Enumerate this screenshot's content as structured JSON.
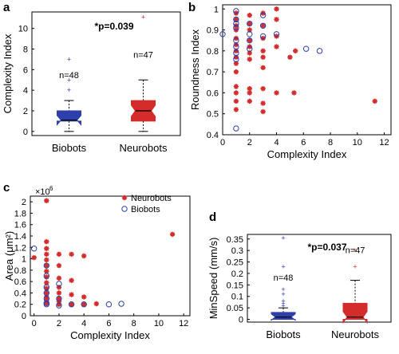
{
  "colors": {
    "neurobots": "#d42b2b",
    "biobots": "#2d3fa8",
    "median": "#000000"
  },
  "chart_data": [
    {
      "panel": "a",
      "type": "box",
      "ylabel": "Complexity Index",
      "categories": [
        "Biobots",
        "Neurobots"
      ],
      "yticks": [
        0,
        2,
        4,
        6,
        8,
        10
      ],
      "ylim": [
        -0.4,
        11.6
      ],
      "significance": "*p=0.039",
      "boxes": [
        {
          "name": "Biobots",
          "n_label": "n=48",
          "color": "biobots",
          "q1": 1.0,
          "median": 1.1,
          "q3": 2.0,
          "whisker_low": 0.0,
          "whisker_high": 3.0,
          "outliers": [
            4.0,
            5.0,
            7.0
          ]
        },
        {
          "name": "Neurobots",
          "n_label": "n=47",
          "color": "neurobots",
          "q1": 1.0,
          "median": 2.0,
          "q3": 3.0,
          "whisker_low": 0.0,
          "whisker_high": 5.0,
          "outliers": [
            11.1
          ]
        }
      ]
    },
    {
      "panel": "b",
      "type": "scatter",
      "xlabel": "Complexity Index",
      "ylabel": "Roundness Index",
      "xlim": [
        0,
        12.5
      ],
      "ylim": [
        0.4,
        1.02
      ],
      "xticks": [
        0,
        2,
        4,
        6,
        8,
        10,
        12
      ],
      "yticks": [
        0.4,
        0.5,
        0.6,
        0.7,
        0.8,
        0.9,
        1
      ],
      "series": [
        {
          "color": "neurobots",
          "marker": "star",
          "points": [
            [
              1,
              0.98
            ],
            [
              1,
              0.95
            ],
            [
              1,
              0.92
            ],
            [
              1,
              0.9
            ],
            [
              1,
              0.86
            ],
            [
              1,
              0.83
            ],
            [
              1,
              0.8
            ],
            [
              1,
              0.77
            ],
            [
              1,
              0.74
            ],
            [
              1,
              0.7
            ],
            [
              1,
              0.63
            ],
            [
              1,
              0.6
            ],
            [
              1,
              0.56
            ],
            [
              1,
              0.52
            ],
            [
              2,
              0.97
            ],
            [
              2,
              0.93
            ],
            [
              2,
              0.9
            ],
            [
              2,
              0.85
            ],
            [
              2,
              0.82
            ],
            [
              2,
              0.79
            ],
            [
              2,
              0.76
            ],
            [
              2,
              0.62
            ],
            [
              2,
              0.6
            ],
            [
              2,
              0.56
            ],
            [
              3,
              0.98
            ],
            [
              3,
              0.92
            ],
            [
              3,
              0.86
            ],
            [
              3,
              0.8
            ],
            [
              3,
              0.77
            ],
            [
              3,
              0.72
            ],
            [
              3,
              0.62
            ],
            [
              3,
              0.55
            ],
            [
              3,
              0.51
            ],
            [
              4,
              1.0
            ],
            [
              4,
              0.95
            ],
            [
              4,
              0.87
            ],
            [
              4,
              0.82
            ],
            [
              4,
              0.6
            ],
            [
              5,
              0.77
            ],
            [
              5.3,
              0.6
            ],
            [
              5.4,
              0.8
            ],
            [
              11.3,
              0.56
            ]
          ]
        },
        {
          "color": "biobots",
          "marker": "circle",
          "points": [
            [
              0,
              0.88
            ],
            [
              1,
              0.99
            ],
            [
              1,
              0.95
            ],
            [
              1,
              0.93
            ],
            [
              1,
              0.91
            ],
            [
              1,
              0.85
            ],
            [
              1,
              0.82
            ],
            [
              1,
              0.79
            ],
            [
              1,
              0.76
            ],
            [
              1,
              0.43
            ],
            [
              2,
              0.93
            ],
            [
              2,
              0.88
            ],
            [
              2,
              0.85
            ],
            [
              2,
              0.81
            ],
            [
              3,
              0.97
            ],
            [
              3,
              0.92
            ],
            [
              3,
              0.87
            ],
            [
              4,
              0.88
            ],
            [
              6.2,
              0.81
            ],
            [
              7.2,
              0.8
            ]
          ]
        }
      ]
    },
    {
      "panel": "c",
      "type": "scatter",
      "xlabel": "Complexity Index",
      "ylabel": "Area (μm²)",
      "y_multiplier": "×10",
      "y_exponent": "6",
      "xlim": [
        -0.3,
        12.5
      ],
      "ylim": [
        0,
        2.1
      ],
      "xticks": [
        0,
        2,
        4,
        6,
        8,
        10,
        12
      ],
      "yticks": [
        0,
        0.2,
        0.4,
        0.6,
        0.8,
        1,
        1.2,
        1.4,
        1.6,
        1.8,
        2
      ],
      "legend": {
        "placement": "top-right",
        "entries": [
          {
            "label": "Neurobots",
            "series": 0
          },
          {
            "label": "Biobots",
            "series": 1
          }
        ]
      },
      "series": [
        {
          "name": "Neurobots",
          "color": "neurobots",
          "marker": "star",
          "points": [
            [
              0,
              1.02
            ],
            [
              1,
              2.02
            ],
            [
              1,
              1.3
            ],
            [
              1,
              1.18
            ],
            [
              1,
              1.08
            ],
            [
              1,
              0.98
            ],
            [
              1,
              0.88
            ],
            [
              1,
              0.78
            ],
            [
              1,
              0.68
            ],
            [
              1,
              0.58
            ],
            [
              1,
              0.48
            ],
            [
              1,
              0.4
            ],
            [
              1,
              0.33
            ],
            [
              1,
              0.27
            ],
            [
              1,
              0.22
            ],
            [
              2,
              1.08
            ],
            [
              2,
              0.88
            ],
            [
              2,
              0.66
            ],
            [
              2,
              0.5
            ],
            [
              2,
              0.4
            ],
            [
              2,
              0.3
            ],
            [
              2,
              0.25
            ],
            [
              2,
              0.2
            ],
            [
              3,
              1.08
            ],
            [
              3,
              0.62
            ],
            [
              3,
              0.37
            ],
            [
              3,
              0.2
            ],
            [
              4,
              1.05
            ],
            [
              4,
              0.33
            ],
            [
              4,
              0.2
            ],
            [
              5,
              0.21
            ],
            [
              11.1,
              1.43
            ]
          ]
        },
        {
          "name": "Biobots",
          "color": "biobots",
          "marker": "circle",
          "points": [
            [
              0,
              1.18
            ],
            [
              1,
              0.88
            ],
            [
              1,
              0.7
            ],
            [
              1,
              0.5
            ],
            [
              1,
              0.4
            ],
            [
              1,
              0.3
            ],
            [
              1,
              0.22
            ],
            [
              1,
              0.2
            ],
            [
              2,
              0.56
            ],
            [
              2,
              0.3
            ],
            [
              2,
              0.18
            ],
            [
              3,
              0.2
            ],
            [
              4,
              0.2
            ],
            [
              6,
              0.2
            ],
            [
              7,
              0.21
            ]
          ]
        }
      ]
    },
    {
      "panel": "d",
      "type": "box",
      "ylabel": "MinSpeed (mm/s)",
      "categories": [
        "Biobots",
        "Neurobots"
      ],
      "yticks": [
        0,
        0.05,
        0.1,
        0.15,
        0.2,
        0.25,
        0.3,
        0.35
      ],
      "ylim": [
        -0.012,
        0.37
      ],
      "significance": "*p=0.037",
      "boxes": [
        {
          "name": "Biobots",
          "n_label": "n=48",
          "color": "biobots",
          "q1": 0.0,
          "median": 0.01,
          "q3": 0.03,
          "whisker_low": 0.0,
          "whisker_high": 0.05,
          "outliers": [
            0.06,
            0.07,
            0.08,
            0.11,
            0.13,
            0.23,
            0.355
          ]
        },
        {
          "name": "Neurobots",
          "n_label": "n=47",
          "color": "neurobots",
          "q1": 0.0,
          "median": 0.01,
          "q3": 0.07,
          "whisker_low": 0.0,
          "whisker_high": 0.17,
          "outliers": [
            0.23,
            0.3
          ]
        }
      ]
    }
  ],
  "panels": [
    "a",
    "b",
    "c",
    "d"
  ]
}
